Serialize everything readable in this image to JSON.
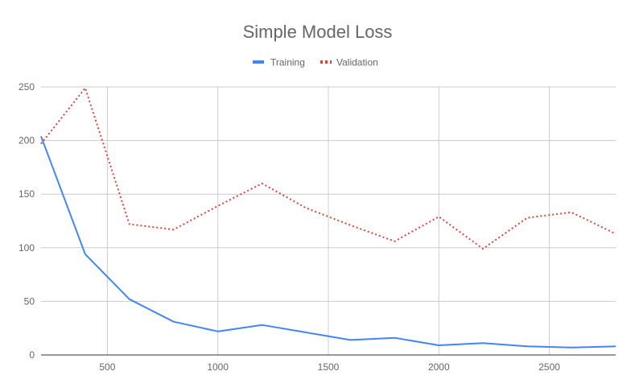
{
  "chart_data": {
    "type": "line",
    "title": "Simple Model Loss",
    "xlabel": "",
    "ylabel": "",
    "xlim": [
      200,
      2800
    ],
    "ylim": [
      0,
      250
    ],
    "x_ticks": [
      500,
      1000,
      1500,
      2000,
      2500
    ],
    "y_ticks": [
      0,
      50,
      100,
      150,
      200,
      250
    ],
    "grid": true,
    "legend_position": "top",
    "x": [
      200,
      400,
      600,
      800,
      1000,
      1200,
      1400,
      1600,
      1800,
      2000,
      2200,
      2400,
      2600,
      2800
    ],
    "series": [
      {
        "name": "Training",
        "color": "#4285f4",
        "style": "solid",
        "values": [
          204,
          94,
          52,
          31,
          22,
          28,
          21,
          14,
          16,
          9,
          11,
          8,
          7,
          8
        ]
      },
      {
        "name": "Validation",
        "color": "#db4437",
        "style": "dotted",
        "values": [
          197,
          249,
          122,
          117,
          139,
          160,
          137,
          121,
          106,
          129,
          99,
          128,
          133,
          113
        ]
      }
    ]
  }
}
